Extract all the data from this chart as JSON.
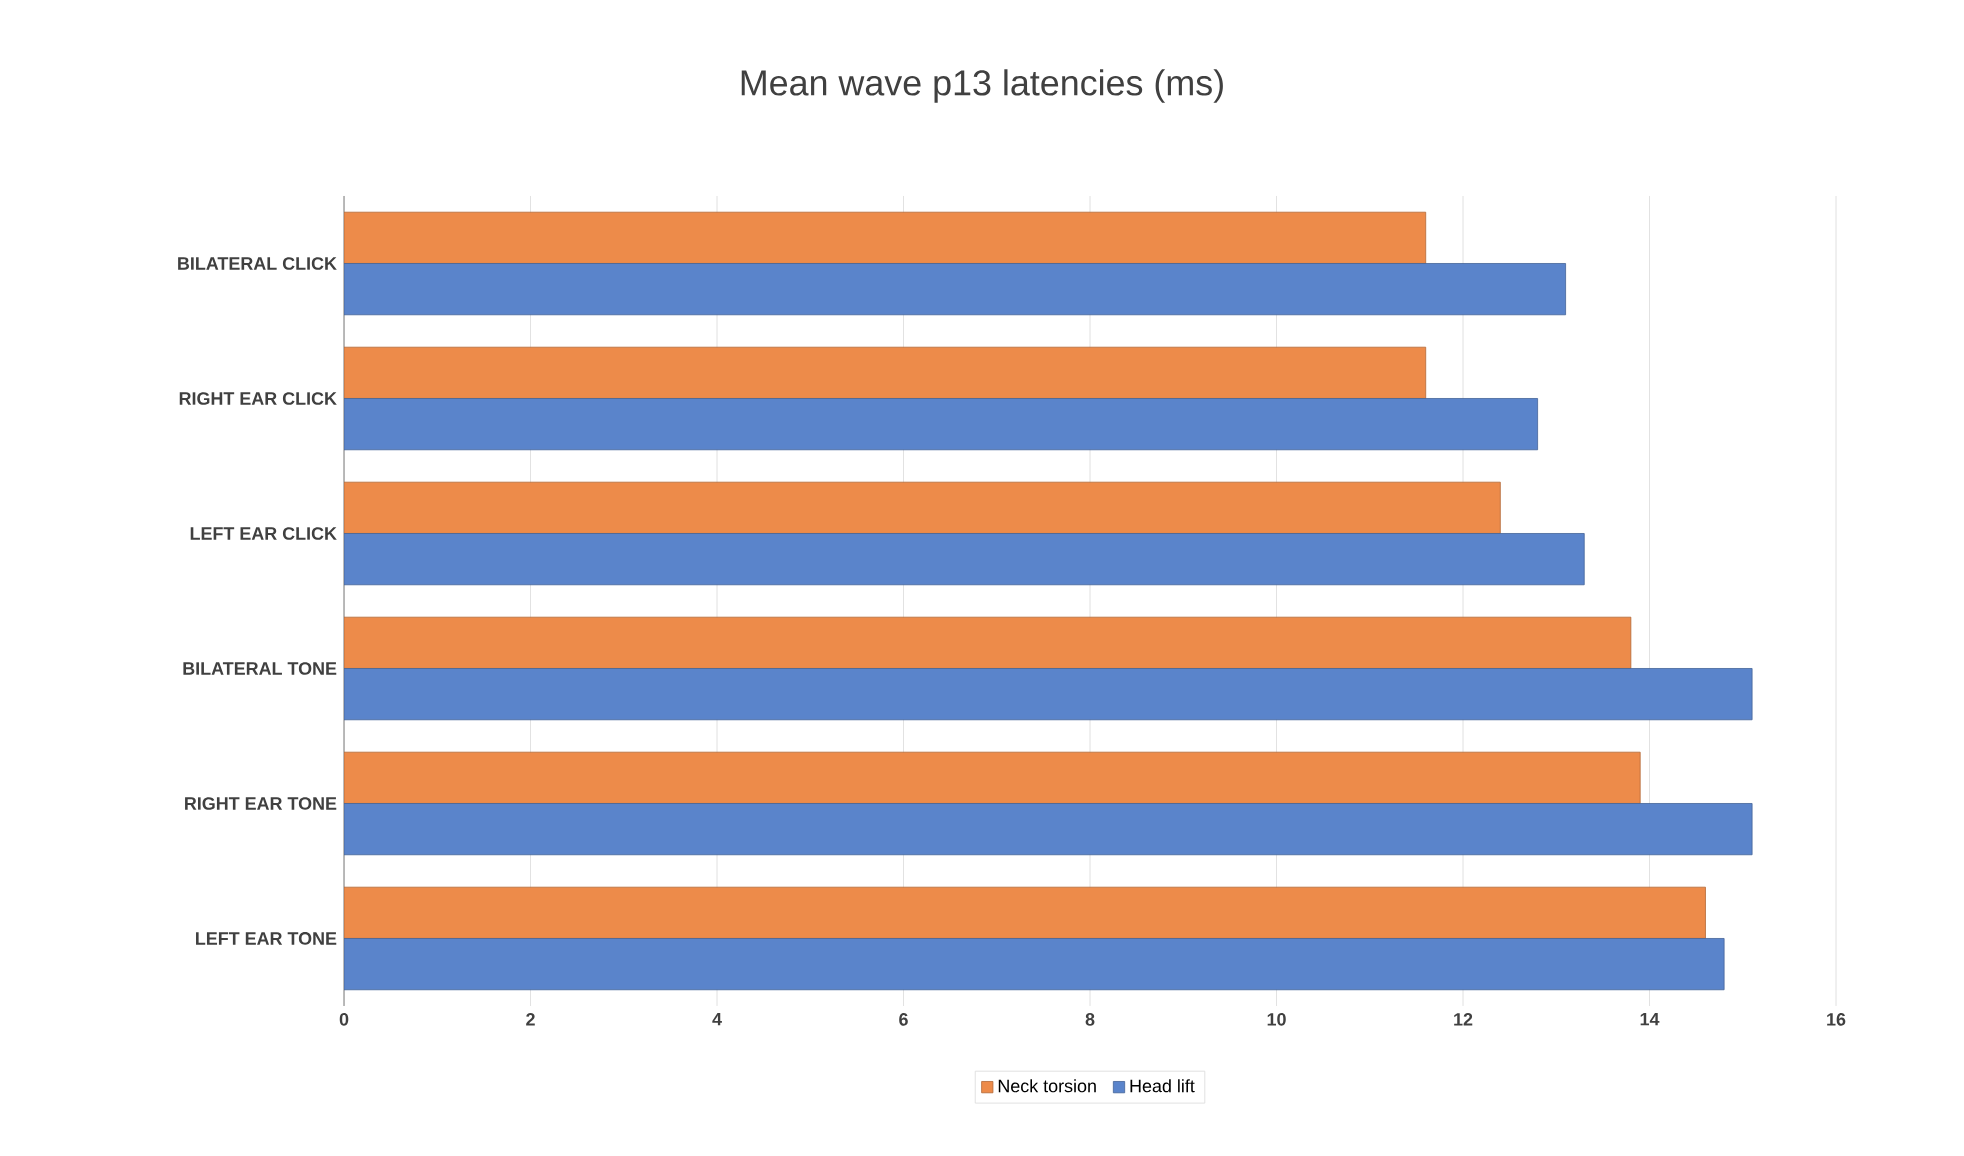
{
  "chart_data": {
    "type": "bar",
    "orientation": "horizontal",
    "title": "Mean wave p13 latencies (ms)",
    "categories": [
      "BILATERAL CLICK",
      "RIGHT EAR CLICK",
      "LEFT EAR CLICK",
      "BILATERAL TONE",
      "RIGHT EAR TONE",
      "LEFT EAR TONE"
    ],
    "series": [
      {
        "name": "Neck torsion",
        "color": "#ed8b4a",
        "values": [
          11.6,
          11.6,
          12.4,
          13.8,
          13.9,
          14.6
        ]
      },
      {
        "name": "Head lift",
        "color": "#5a84cb",
        "values": [
          13.1,
          12.8,
          13.3,
          15.1,
          15.1,
          14.8
        ]
      }
    ],
    "xlim": [
      0,
      16
    ],
    "xticks": [
      0,
      2,
      4,
      6,
      8,
      10,
      12,
      14,
      16
    ],
    "grid": "x",
    "legend": "bottom"
  }
}
